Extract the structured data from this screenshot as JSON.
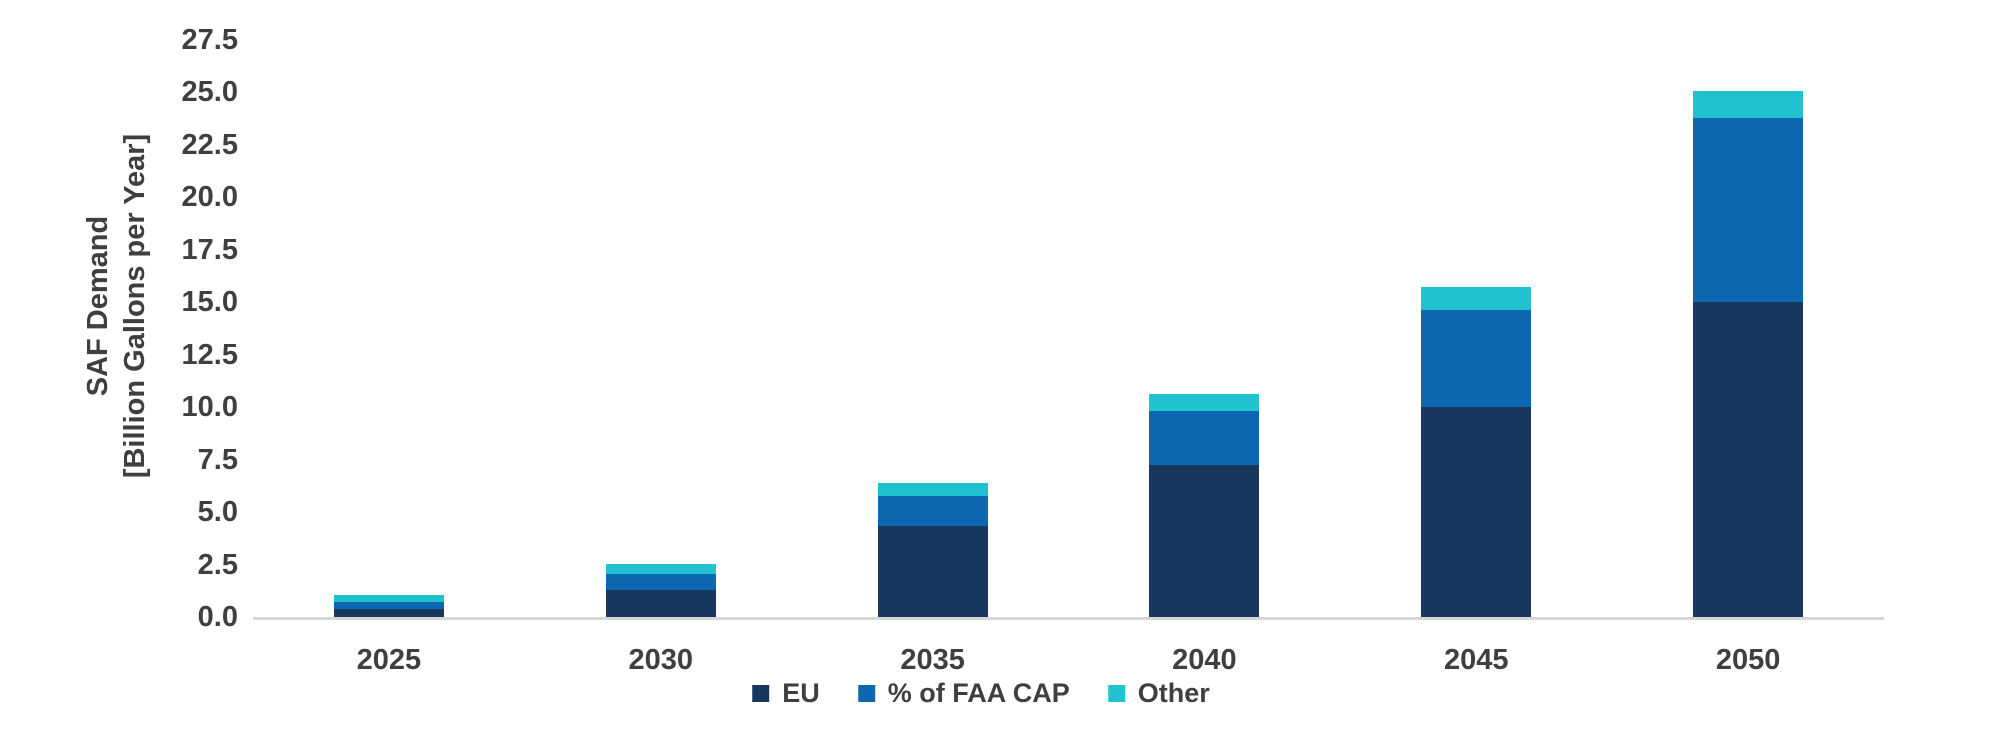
{
  "chart_data": {
    "type": "bar",
    "stacked": true,
    "title": "",
    "categories": [
      "2025",
      "2030",
      "2035",
      "2040",
      "2045",
      "2050"
    ],
    "series": [
      {
        "name": "EU",
        "color": "#17375E",
        "values": [
          0.4,
          1.3,
          4.35,
          7.25,
          10.0,
          15.0
        ]
      },
      {
        "name": "% of FAA CAP",
        "color": "#0E68B1",
        "values": [
          0.3,
          0.75,
          1.4,
          2.55,
          4.65,
          8.8
        ]
      },
      {
        "name": "Other",
        "color": "#1FC2CE",
        "values": [
          0.35,
          0.5,
          0.65,
          0.85,
          1.1,
          1.25
        ]
      }
    ],
    "totals": [
      1.05,
      2.55,
      6.4,
      10.65,
      15.75,
      25.05
    ],
    "ylabel": "SAF Demand [Billion Gallons per Year]",
    "ylabel_lines": [
      "SAF Demand",
      "[Billion Gallons per Year]"
    ],
    "xlabel": "",
    "ylim": [
      0,
      27.5
    ],
    "ytick_labels": [
      "0.0",
      "2.5",
      "5.0",
      "7.5",
      "10.0",
      "12.5",
      "15.0",
      "17.5",
      "20.0",
      "22.5",
      "25.0",
      "27.5"
    ],
    "ytick_values": [
      0,
      2.5,
      5,
      7.5,
      10,
      12.5,
      15,
      17.5,
      20,
      22.5,
      25,
      27.5
    ],
    "grid": false,
    "legend_position": "bottom",
    "legend_labels": [
      "EU",
      "% of FAA CAP",
      "Other"
    ],
    "text_color": "#3F3F3F",
    "axis_line_color": "#D6D6D6",
    "background": "#FFFFFF"
  }
}
